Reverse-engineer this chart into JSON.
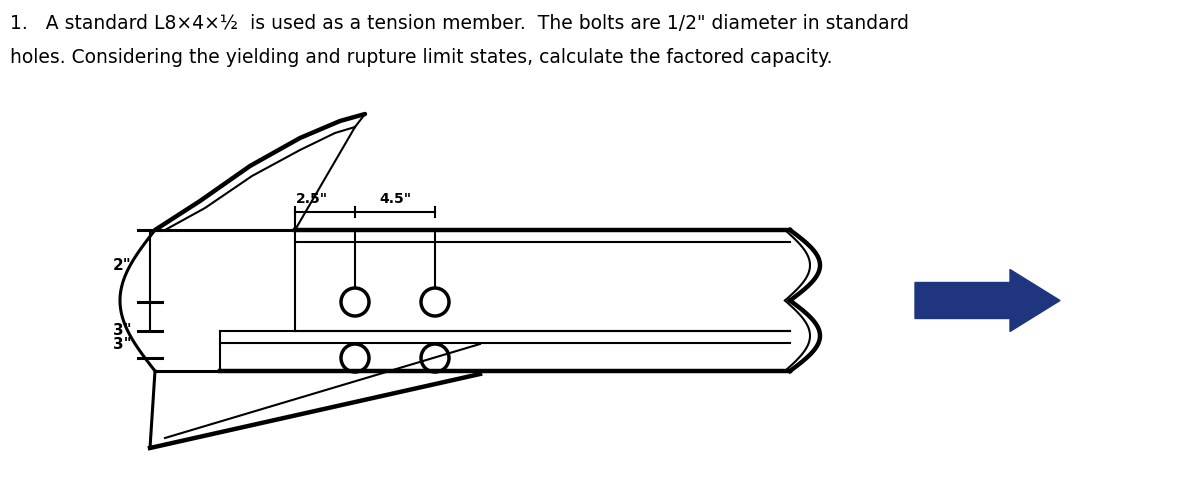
{
  "title_line1": "1.   A standard L8×4×½  is used as a tension member.  The bolts are 1/2\" diameter in standard",
  "title_line2": "holes. Considering the yielding and rupture limit states, calculate the factored capacity.",
  "dim_label_25": "2.5\"",
  "dim_label_45": "4.5\"",
  "dim_label_2": "2\"",
  "dim_label_3a": "3\"",
  "dim_label_3b": "3\"",
  "arrow_color": "#1f3580",
  "line_color": "#000000",
  "bg_color": "#ffffff",
  "title_fontsize": 13.5,
  "label_fontsize": 11
}
